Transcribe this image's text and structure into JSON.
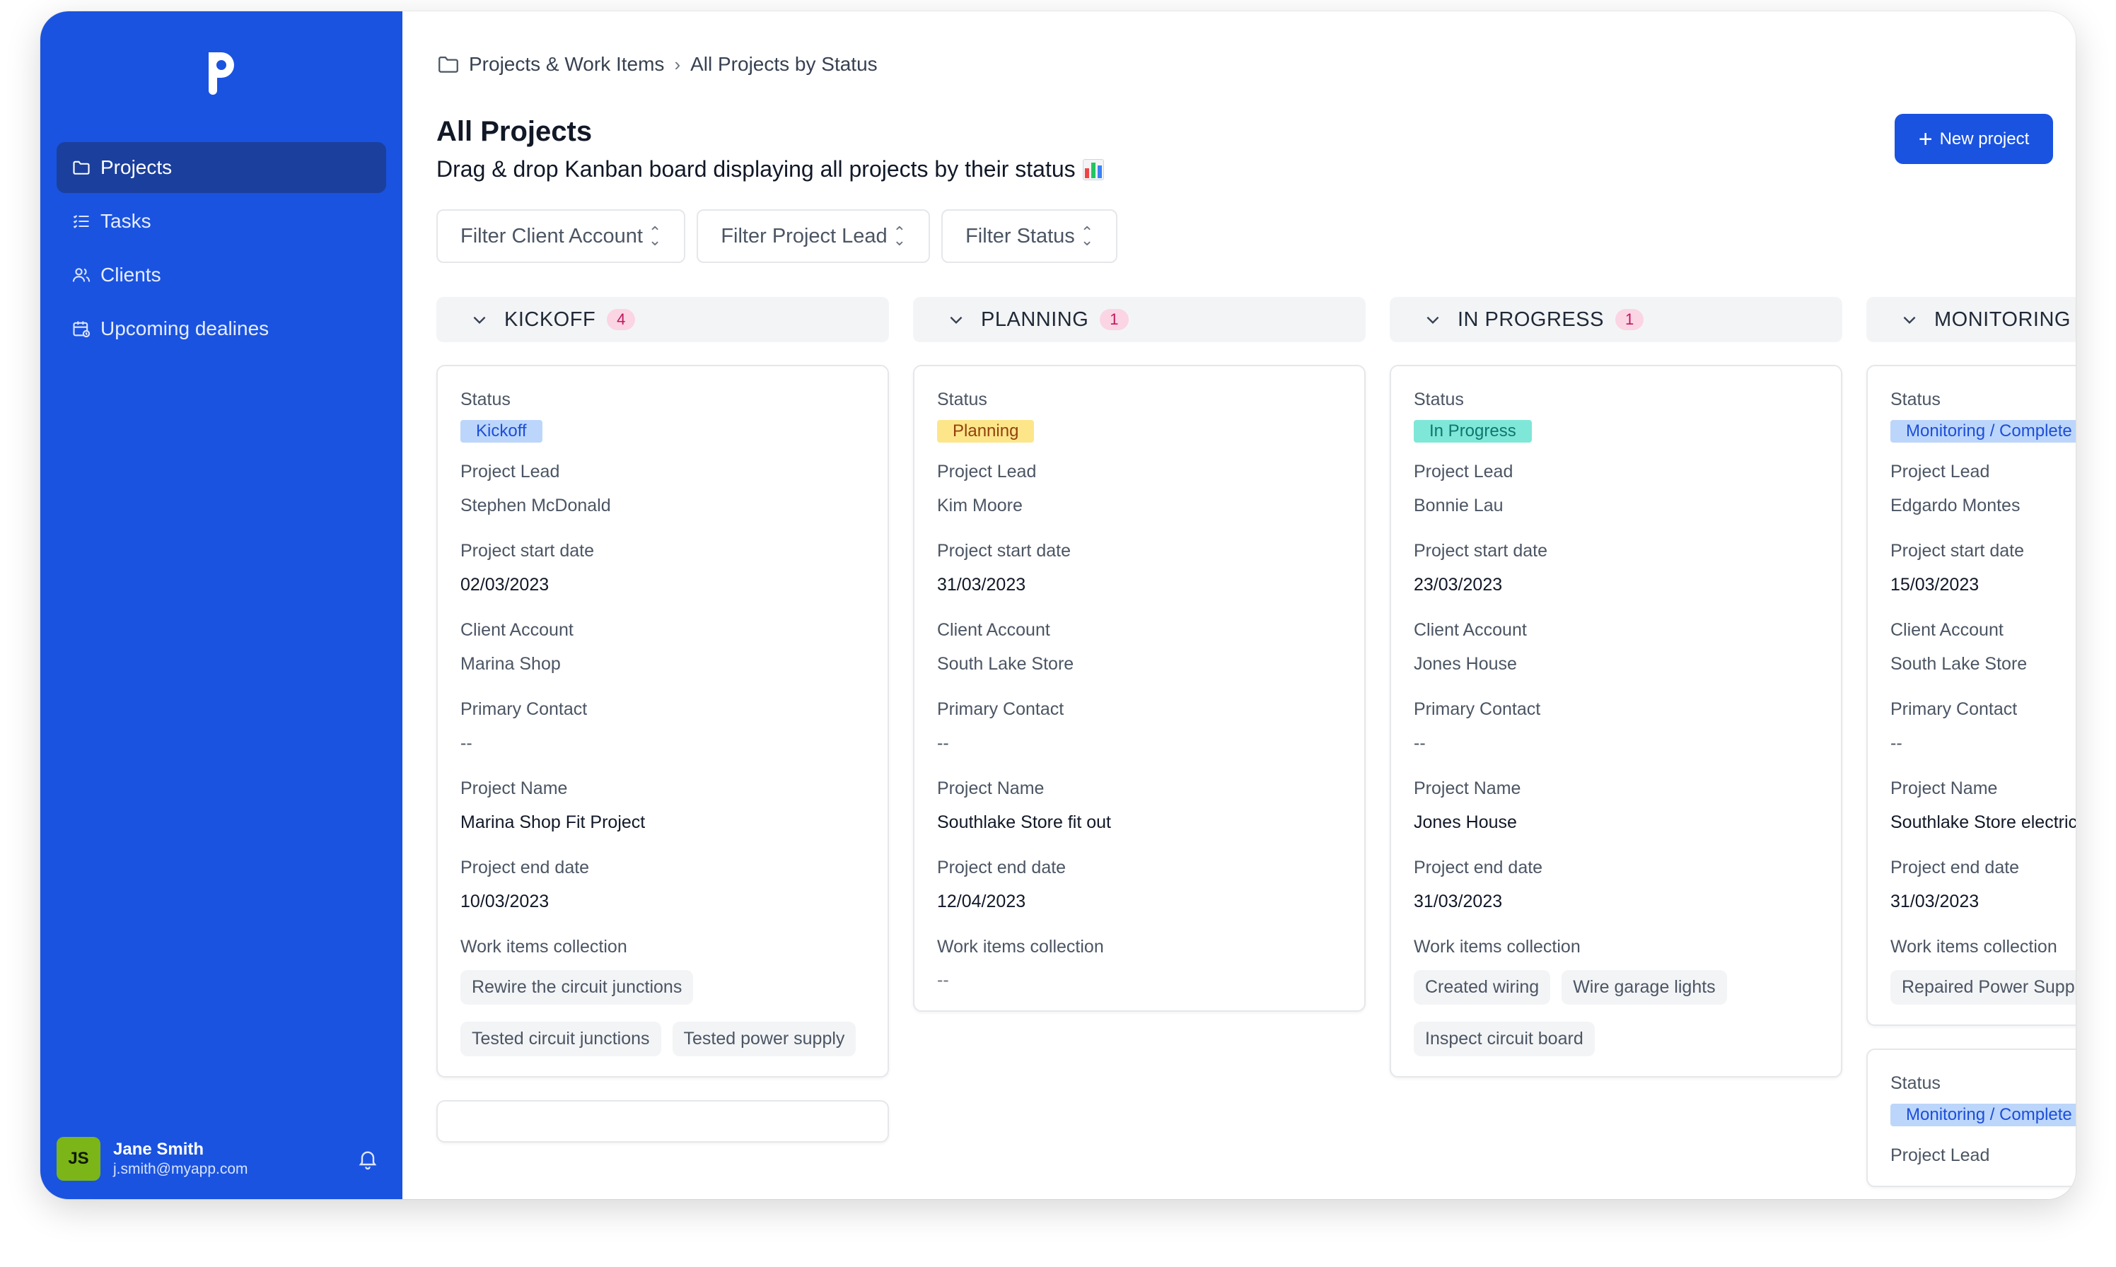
{
  "sidebar": {
    "items": [
      {
        "label": "Projects",
        "icon": "folder-icon",
        "active": true
      },
      {
        "label": "Tasks",
        "icon": "list-icon",
        "active": false
      },
      {
        "label": "Clients",
        "icon": "users-icon",
        "active": false
      },
      {
        "label": "Upcoming dealines",
        "icon": "calendar-icon",
        "active": false
      }
    ],
    "user": {
      "initials": "JS",
      "name": "Jane Smith",
      "email": "j.smith@myapp.com"
    }
  },
  "breadcrumb": {
    "parent": "Projects & Work Items",
    "current": "All Projects by Status",
    "separator": "›"
  },
  "header": {
    "title": "All Projects",
    "subtitle": "Drag & drop Kanban board displaying all projects by their status",
    "new_button": "New project"
  },
  "filters": [
    {
      "label": "Filter Client Account"
    },
    {
      "label": "Filter Project Lead"
    },
    {
      "label": "Filter Status"
    }
  ],
  "labels": {
    "status": "Status",
    "lead": "Project Lead",
    "start": "Project start date",
    "client": "Client Account",
    "contact": "Primary Contact",
    "name": "Project Name",
    "end": "Project end date",
    "work": "Work items collection"
  },
  "colors": {
    "kickoff": {
      "bg": "#bcd6fb",
      "fg": "#1d4ed8"
    },
    "planning": {
      "bg": "#fde68a",
      "fg": "#92400e"
    },
    "progress": {
      "bg": "#7ee7d8",
      "fg": "#0f766e"
    },
    "monitoring": {
      "bg": "#bcd6fb",
      "fg": "#1d4ed8"
    }
  },
  "columns": [
    {
      "title": "KICKOFF",
      "count": "4",
      "cards": [
        {
          "status": "Kickoff",
          "lead": "Stephen McDonald",
          "start": "02/03/2023",
          "client": "Marina Shop",
          "contact": "--",
          "name": "Marina Shop Fit Project",
          "end": "10/03/2023",
          "work": [
            "Rewire the circuit junctions",
            "Tested circuit junctions",
            "Tested power supply"
          ]
        }
      ]
    },
    {
      "title": "PLANNING",
      "count": "1",
      "cards": [
        {
          "status": "Planning",
          "lead": "Kim Moore",
          "start": "31/03/2023",
          "client": "South Lake Store",
          "contact": "--",
          "name": "Southlake Store fit out",
          "end": "12/04/2023",
          "work_empty": "--"
        }
      ]
    },
    {
      "title": "IN PROGRESS",
      "count": "1",
      "cards": [
        {
          "status": "In Progress",
          "lead": "Bonnie Lau",
          "start": "23/03/2023",
          "client": "Jones House",
          "contact": "--",
          "name": "Jones House",
          "end": "31/03/2023",
          "work": [
            "Created wiring",
            "Wire garage lights",
            "Inspect circuit board"
          ]
        }
      ]
    },
    {
      "title": "MONITORING /",
      "count": "",
      "cards": [
        {
          "status": "Monitoring / Complete",
          "lead": "Edgardo Montes",
          "start": "15/03/2023",
          "client": "South Lake Store",
          "contact": "--",
          "name": "Southlake Store electric",
          "end": "31/03/2023",
          "work": [
            "Repaired Power Supply"
          ]
        },
        {
          "status": "Monitoring / Complete",
          "lead_partial": "Project Lead"
        }
      ]
    }
  ]
}
